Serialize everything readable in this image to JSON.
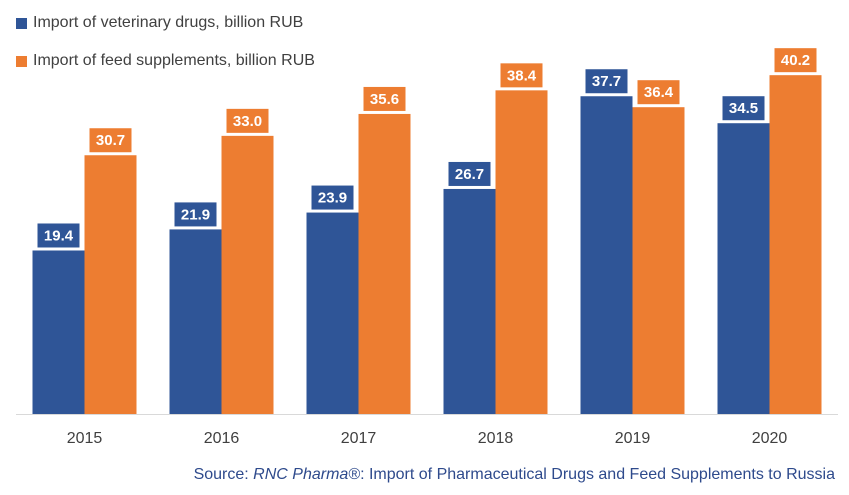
{
  "legend": {
    "series0": "Import of veterinary drugs, billion RUB",
    "series1": "Import of feed supplements, billion RUB"
  },
  "source": {
    "prefix": "Source: ",
    "brand": "RNC Pharma®",
    "suffix": ": Import of Pharmaceutical Drugs and Feed Supplements to Russia"
  },
  "colors": {
    "series0": "#2f5597",
    "series1": "#ed7d31",
    "axis": "#d9d9d9",
    "tick": "#404040",
    "label_text": "#ffffff"
  },
  "chart_data": {
    "type": "bar",
    "categories": [
      "2015",
      "2016",
      "2017",
      "2018",
      "2019",
      "2020"
    ],
    "series": [
      {
        "name": "Import of veterinary drugs, billion RUB",
        "values": [
          19.4,
          21.9,
          23.9,
          26.7,
          37.7,
          34.5
        ],
        "labels": [
          "19.4",
          "21.9",
          "23.9",
          "26.7",
          "37.7",
          "34.5"
        ]
      },
      {
        "name": "Import of feed supplements, billion RUB",
        "values": [
          30.7,
          33.0,
          35.6,
          38.4,
          36.4,
          40.2
        ],
        "labels": [
          "30.7",
          "33.0",
          "35.6",
          "38.4",
          "36.4",
          "40.2"
        ]
      }
    ],
    "ylim": [
      0,
      42
    ],
    "grid": false,
    "legend_position": "top-left"
  }
}
